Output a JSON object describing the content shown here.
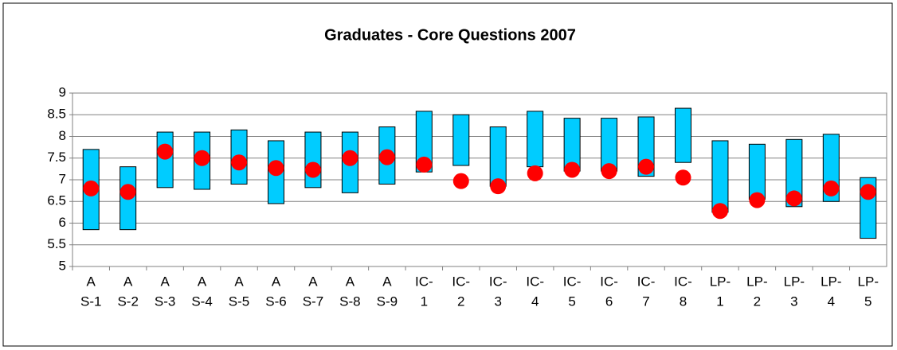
{
  "chart_data": {
    "type": "floating_bar_dot",
    "title": "Graduates - Core Questions 2007",
    "categories": [
      [
        "A",
        "S-1"
      ],
      [
        "A",
        "S-2"
      ],
      [
        "A",
        "S-3"
      ],
      [
        "A",
        "S-4"
      ],
      [
        "A",
        "S-5"
      ],
      [
        "A",
        "S-6"
      ],
      [
        "A",
        "S-7"
      ],
      [
        "A",
        "S-8"
      ],
      [
        "A",
        "S-9"
      ],
      [
        "IC-",
        "1"
      ],
      [
        "IC-",
        "2"
      ],
      [
        "IC-",
        "3"
      ],
      [
        "IC-",
        "4"
      ],
      [
        "IC-",
        "5"
      ],
      [
        "IC-",
        "6"
      ],
      [
        "IC-",
        "7"
      ],
      [
        "IC-",
        "8"
      ],
      [
        "LP-",
        "1"
      ],
      [
        "LP-",
        "2"
      ],
      [
        "LP-",
        "3"
      ],
      [
        "LP-",
        "4"
      ],
      [
        "LP-",
        "5"
      ]
    ],
    "ranges": [
      [
        5.85,
        7.7
      ],
      [
        5.85,
        7.3
      ],
      [
        6.82,
        8.1
      ],
      [
        6.78,
        8.1
      ],
      [
        6.9,
        8.15
      ],
      [
        6.45,
        7.9
      ],
      [
        6.82,
        8.1
      ],
      [
        6.7,
        8.1
      ],
      [
        6.9,
        8.22
      ],
      [
        7.18,
        8.58
      ],
      [
        7.33,
        8.5
      ],
      [
        6.85,
        8.22
      ],
      [
        7.3,
        8.58
      ],
      [
        7.2,
        8.42
      ],
      [
        7.2,
        8.42
      ],
      [
        7.08,
        8.45
      ],
      [
        7.4,
        8.65
      ],
      [
        6.25,
        7.9
      ],
      [
        6.55,
        7.82
      ],
      [
        6.38,
        7.93
      ],
      [
        6.5,
        8.05
      ],
      [
        5.65,
        7.05
      ]
    ],
    "values": [
      6.8,
      6.72,
      7.65,
      7.5,
      7.4,
      7.27,
      7.23,
      7.5,
      7.52,
      7.35,
      6.97,
      6.85,
      7.15,
      7.23,
      7.2,
      7.3,
      7.05,
      6.28,
      6.53,
      6.57,
      6.8,
      6.72
    ],
    "bar_color": "#00ccff",
    "dot_color": "#ff0000",
    "ylim": [
      5,
      9
    ],
    "yticks": [
      5,
      5.5,
      6,
      6.5,
      7,
      7.5,
      8,
      8.5,
      9
    ],
    "grid": true
  }
}
